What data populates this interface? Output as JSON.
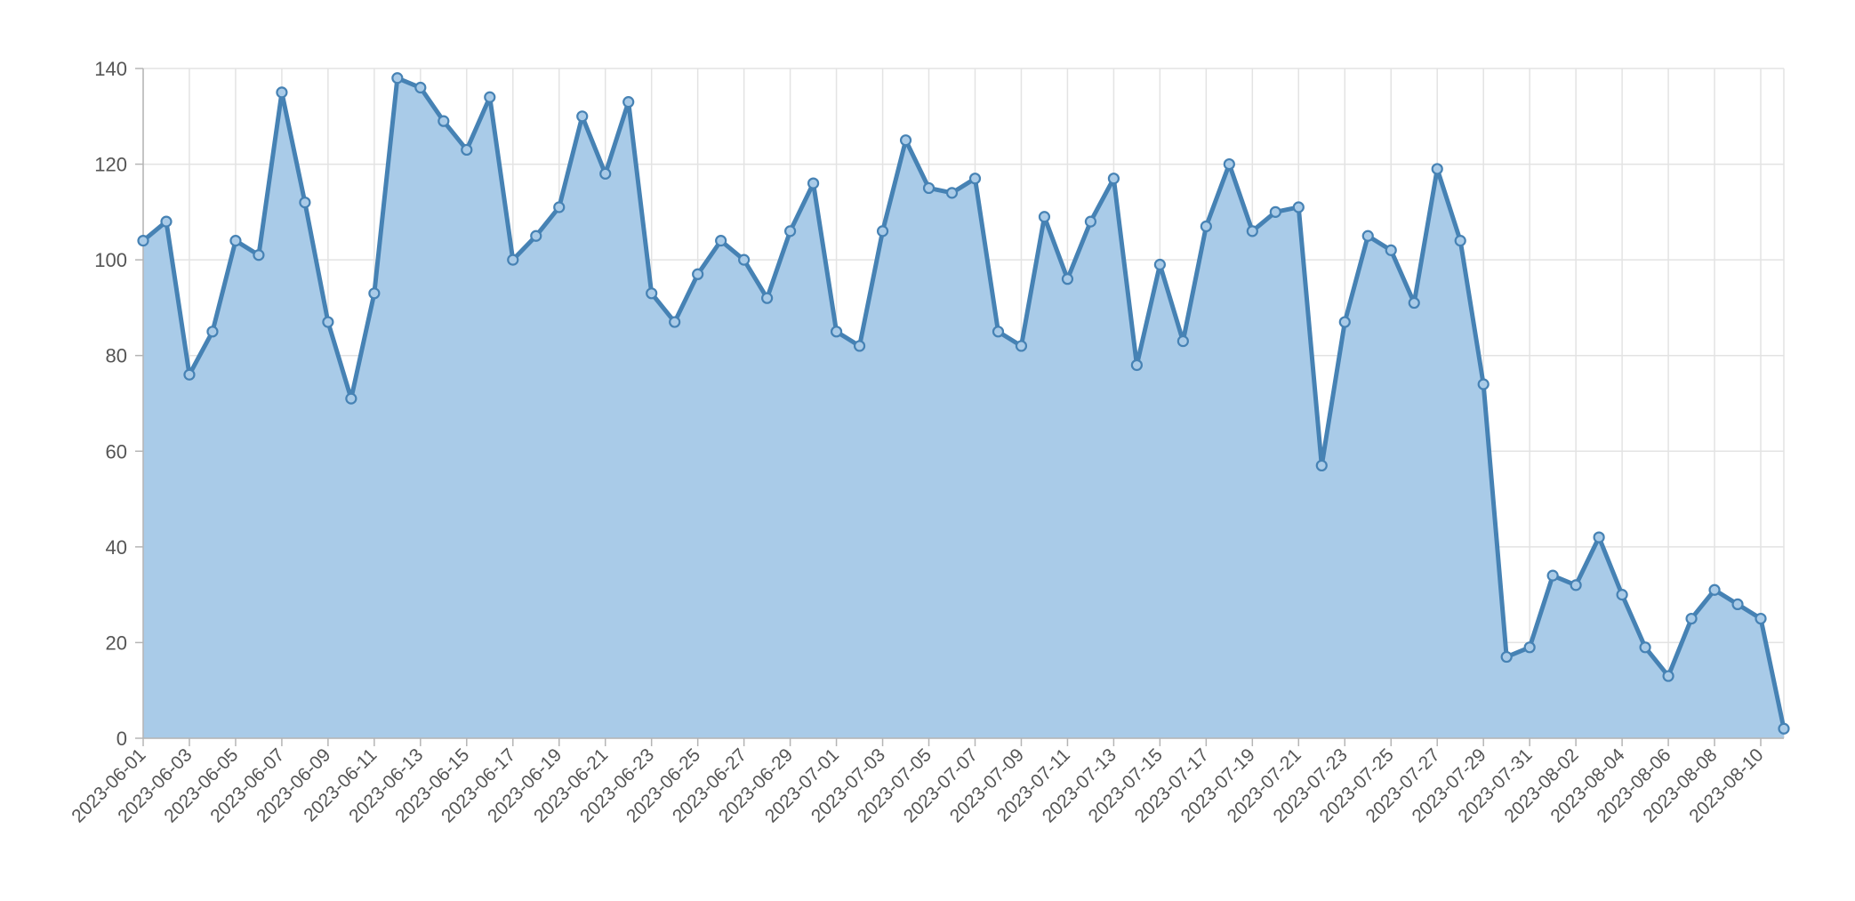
{
  "chart_data": {
    "type": "area",
    "title": "",
    "xlabel": "",
    "ylabel": "",
    "ylim": [
      0,
      140
    ],
    "y_ticks": [
      "0",
      "20",
      "40",
      "60",
      "80",
      "100",
      "120",
      "140"
    ],
    "x_tick_labels": [
      "2023-06-01",
      "2023-06-03",
      "2023-06-05",
      "2023-06-07",
      "2023-06-09",
      "2023-06-11",
      "2023-06-13",
      "2023-06-15",
      "2023-06-17",
      "2023-06-19",
      "2023-06-21",
      "2023-06-23",
      "2023-06-25",
      "2023-06-27",
      "2023-06-29",
      "2023-07-01",
      "2023-07-03",
      "2023-07-05",
      "2023-07-07",
      "2023-07-09",
      "2023-07-11",
      "2023-07-13",
      "2023-07-15",
      "2023-07-17",
      "2023-07-19",
      "2023-07-21",
      "2023-07-23",
      "2023-07-25",
      "2023-07-27",
      "2023-07-29",
      "2023-07-31",
      "2023-08-02",
      "2023-08-04",
      "2023-08-06",
      "2023-08-08",
      "2023-08-10"
    ],
    "grid": true,
    "x_start": "2023-06-01",
    "x_end": "2023-08-11",
    "series": [
      {
        "color": "#4682b4",
        "fill": "#a9cbe8",
        "x": [
          "2023-06-01",
          "2023-06-02",
          "2023-06-03",
          "2023-06-04",
          "2023-06-05",
          "2023-06-06",
          "2023-06-07",
          "2023-06-08",
          "2023-06-09",
          "2023-06-10",
          "2023-06-11",
          "2023-06-12",
          "2023-06-13",
          "2023-06-14",
          "2023-06-15",
          "2023-06-16",
          "2023-06-17",
          "2023-06-18",
          "2023-06-19",
          "2023-06-20",
          "2023-06-21",
          "2023-06-22",
          "2023-06-23",
          "2023-06-24",
          "2023-06-25",
          "2023-06-26",
          "2023-06-27",
          "2023-06-28",
          "2023-06-29",
          "2023-06-30",
          "2023-07-01",
          "2023-07-02",
          "2023-07-03",
          "2023-07-04",
          "2023-07-05",
          "2023-07-06",
          "2023-07-07",
          "2023-07-08",
          "2023-07-09",
          "2023-07-10",
          "2023-07-11",
          "2023-07-12",
          "2023-07-13",
          "2023-07-14",
          "2023-07-15",
          "2023-07-16",
          "2023-07-17",
          "2023-07-18",
          "2023-07-19",
          "2023-07-20",
          "2023-07-21",
          "2023-07-22",
          "2023-07-23",
          "2023-07-24",
          "2023-07-25",
          "2023-07-26",
          "2023-07-27",
          "2023-07-28",
          "2023-07-29",
          "2023-07-30",
          "2023-07-31",
          "2023-08-01",
          "2023-08-02",
          "2023-08-03",
          "2023-08-04",
          "2023-08-05",
          "2023-08-06",
          "2023-08-07",
          "2023-08-08",
          "2023-08-09",
          "2023-08-10",
          "2023-08-11"
        ],
        "values": [
          104,
          108,
          76,
          85,
          104,
          101,
          135,
          112,
          87,
          71,
          93,
          138,
          136,
          129,
          123,
          134,
          100,
          105,
          111,
          130,
          118,
          133,
          93,
          87,
          97,
          104,
          100,
          92,
          106,
          116,
          85,
          82,
          106,
          125,
          115,
          114,
          117,
          85,
          82,
          109,
          96,
          108,
          117,
          78,
          99,
          83,
          107,
          120,
          106,
          110,
          111,
          57,
          87,
          105,
          102,
          91,
          119,
          104,
          74,
          17,
          19,
          34,
          32,
          42,
          30,
          19,
          13,
          25,
          31,
          28,
          25,
          2
        ]
      }
    ]
  }
}
